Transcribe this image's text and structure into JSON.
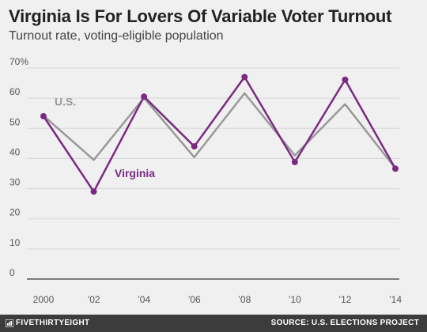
{
  "header": {
    "title": "Virginia Is For Lovers Of Variable Voter Turnout",
    "subtitle": "Turnout rate, voting-eligible population"
  },
  "footer": {
    "brand": "FIVETHIRTYEIGHT",
    "source": "SOURCE: U.S. ELECTIONS PROJECT",
    "logo_icon": "fivethirtyeight-logo-icon"
  },
  "chart_data": {
    "type": "line",
    "title": "Virginia Is For Lovers Of Variable Voter Turnout",
    "subtitle": "Turnout rate, voting-eligible population",
    "x": [
      2000,
      2002,
      2004,
      2006,
      2008,
      2010,
      2012,
      2014
    ],
    "x_tick_labels": [
      "2000",
      "’02",
      "’04",
      "’06",
      "’08",
      "’10",
      "’12",
      "’14"
    ],
    "y_ticks": [
      0,
      10,
      20,
      30,
      40,
      50,
      60,
      70
    ],
    "y_tick_labels": [
      "0",
      "10",
      "20",
      "30",
      "40",
      "50",
      "60",
      "70%"
    ],
    "ylim": [
      0,
      70
    ],
    "grid": true,
    "series": [
      {
        "name": "U.S.",
        "color": "#999999",
        "markers": false,
        "values": [
          54.2,
          39.5,
          60.1,
          40.4,
          61.6,
          41.0,
          58.0,
          36.7
        ]
      },
      {
        "name": "Virginia",
        "color": "#7b2a82",
        "markers": true,
        "values": [
          54.0,
          29.0,
          60.5,
          44.0,
          67.0,
          38.8,
          66.1,
          36.6
        ]
      }
    ]
  }
}
